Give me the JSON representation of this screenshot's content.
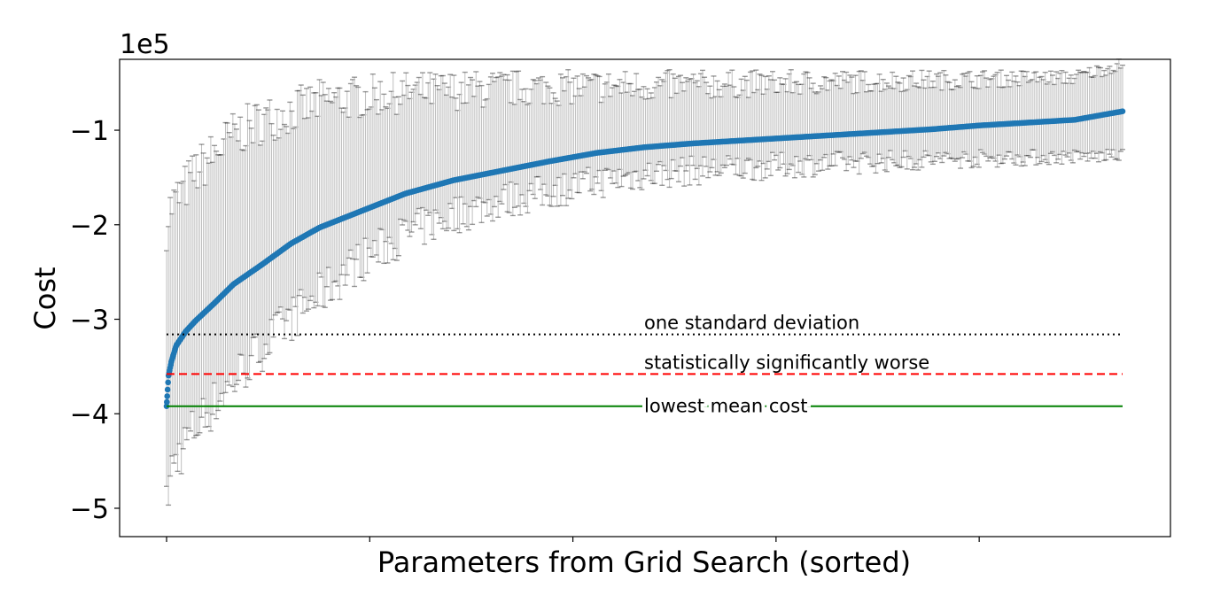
{
  "chart_data": {
    "type": "scatter",
    "title": "",
    "xlabel": "Parameters from Grid Search (sorted)",
    "ylabel": "Cost",
    "y_multiplier_label": "1e5",
    "xlim": [
      0,
      1
    ],
    "ylim": [
      -5.3,
      -0.25
    ],
    "yticks": [
      -5,
      -4,
      -3,
      -2,
      -1
    ],
    "ytick_labels": [
      "−5",
      "−4",
      "−3",
      "−2",
      "−1"
    ],
    "xticks": [
      0,
      0.2125,
      0.425,
      0.6375,
      0.85
    ],
    "xtick_labels": [
      "",
      "",
      "",
      "",
      ""
    ],
    "grid": false,
    "series": [
      {
        "name": "",
        "kind": "mean",
        "color": "#1f77b4",
        "x": [
          0,
          0.002,
          0.005,
          0.01,
          0.02,
          0.03,
          0.05,
          0.07,
          0.1,
          0.13,
          0.16,
          0.2,
          0.25,
          0.3,
          0.35,
          0.4,
          0.45,
          0.5,
          0.55,
          0.6,
          0.65,
          0.7,
          0.75,
          0.8,
          0.85,
          0.9,
          0.95,
          1.0
        ],
        "y": [
          -3.92,
          -3.6,
          -3.45,
          -3.28,
          -3.13,
          -3.02,
          -2.83,
          -2.63,
          -2.42,
          -2.2,
          -2.03,
          -1.87,
          -1.67,
          -1.53,
          -1.43,
          -1.33,
          -1.24,
          -1.18,
          -1.14,
          -1.11,
          -1.08,
          -1.05,
          -1.02,
          -0.99,
          -0.95,
          -0.92,
          -0.89,
          -0.8
        ],
        "upper": [
          -2.0,
          -1.9,
          -1.8,
          -1.75,
          -1.6,
          -1.45,
          -1.25,
          -1.05,
          -0.9,
          -0.8,
          -0.7,
          -0.65,
          -0.6,
          -0.58,
          -0.56,
          -0.55,
          -0.54,
          -0.53,
          -0.52,
          -0.51,
          -0.5,
          -0.49,
          -0.48,
          -0.47,
          -0.46,
          -0.45,
          -0.44,
          -0.3
        ],
        "lower": [
          -5.0,
          -4.8,
          -4.6,
          -4.5,
          -4.3,
          -4.15,
          -3.9,
          -3.65,
          -3.3,
          -3.0,
          -2.75,
          -2.4,
          -2.1,
          -1.9,
          -1.75,
          -1.65,
          -1.55,
          -1.47,
          -1.43,
          -1.4,
          -1.37,
          -1.35,
          -1.33,
          -1.31,
          -1.3,
          -1.29,
          -1.28,
          -1.27
        ]
      }
    ],
    "hlines": [
      {
        "label": "one standard deviation",
        "y": -3.16,
        "style": "dotted",
        "color": "#000000"
      },
      {
        "label": "statistically significantly worse",
        "y": -3.58,
        "style": "dashed",
        "color": "#ff0000"
      },
      {
        "label": "lowest mean cost",
        "y": -3.92,
        "style": "solid",
        "color": "#008000"
      }
    ],
    "errorbar_color": "#bfbfbf",
    "errorbar_cap_color": "#000000"
  }
}
